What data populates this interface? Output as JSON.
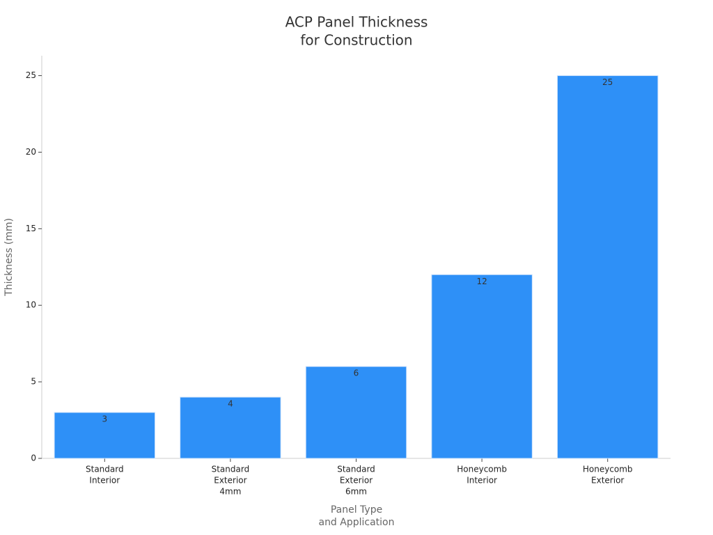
{
  "chart_data": {
    "type": "bar",
    "title": [
      "ACP Panel Thickness",
      "for Construction"
    ],
    "x_label": [
      "Panel Type",
      "and Application"
    ],
    "y_label": "Thickness (mm)",
    "categories": [
      [
        "Standard",
        "Interior"
      ],
      [
        "Standard",
        "Exterior",
        "4mm"
      ],
      [
        "Standard",
        "Exterior",
        "6mm"
      ],
      [
        "Honeycomb",
        "Interior"
      ],
      [
        "Honeycomb",
        "Exterior"
      ]
    ],
    "values": [
      3,
      4,
      6,
      12,
      25
    ],
    "color": "#2e90f7",
    "ylim": [
      0,
      26.3
    ],
    "yticks": [
      0,
      5,
      10,
      15,
      20,
      25
    ],
    "grid": false
  }
}
